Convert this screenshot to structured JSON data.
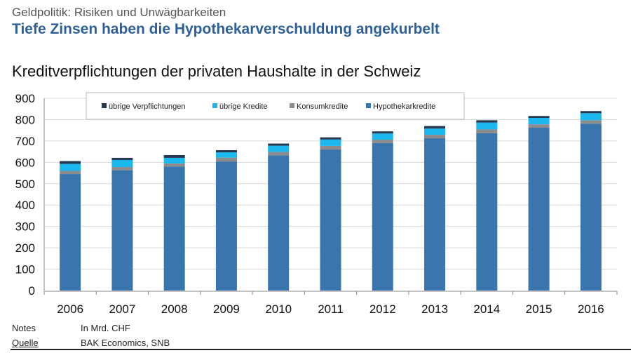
{
  "header": {
    "kicker": "Geldpolitik: Risiken und Unwägbarkeiten",
    "headline": "Tiefe Zinsen haben die Hypothekarverschuldung angekurbelt"
  },
  "chart_data": {
    "type": "bar",
    "stacked": true,
    "title": "Kreditverpflichtungen der privaten Haushalte in der Schweiz",
    "xlabel": "",
    "ylabel": "",
    "ylim": [
      0,
      900
    ],
    "yticks": [
      0,
      100,
      200,
      300,
      400,
      500,
      600,
      700,
      800,
      900
    ],
    "grid": true,
    "legend_position": "top",
    "categories": [
      "2006",
      "2007",
      "2008",
      "2009",
      "2010",
      "2011",
      "2012",
      "2013",
      "2014",
      "2015",
      "2016"
    ],
    "series": [
      {
        "name": "Hypothekarkredite",
        "color": "#3a76ad",
        "values": [
          545,
          563,
          580,
          604,
          633,
          660,
          690,
          713,
          736,
          762,
          781
        ]
      },
      {
        "name": "Konsumkredite",
        "color": "#8c8c8c",
        "values": [
          15,
          15,
          15,
          18,
          16,
          17,
          16,
          16,
          18,
          16,
          16
        ]
      },
      {
        "name": "übrige Kredite",
        "color": "#1ab8ee",
        "values": [
          33,
          33,
          26,
          25,
          29,
          30,
          29,
          29,
          32,
          30,
          33
        ]
      },
      {
        "name": "übrige Verpflichtungen",
        "color": "#253a52",
        "values": [
          13,
          10,
          13,
          10,
          10,
          10,
          10,
          12,
          11,
          9,
          10
        ]
      }
    ],
    "legend_order": [
      "übrige Verpflichtungen",
      "übrige Kredite",
      "Konsumkredite",
      "Hypothekarkredite"
    ]
  },
  "footer": {
    "notes_label": "Notes",
    "notes_value": "In Mrd. CHF",
    "source_label": "Quelle",
    "source_value": "BAK Economics, SNB"
  }
}
